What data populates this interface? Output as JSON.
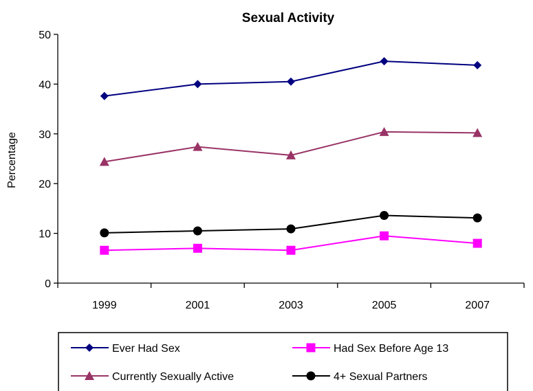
{
  "chart_data": {
    "type": "line",
    "title": "Sexual Activity",
    "xlabel": "",
    "ylabel": "Percentage",
    "categories": [
      "1999",
      "2001",
      "2003",
      "2005",
      "2007"
    ],
    "ylim": [
      0,
      50
    ],
    "yticks": [
      0,
      10,
      20,
      30,
      40,
      50
    ],
    "grid": false,
    "legend_position": "bottom",
    "series": [
      {
        "name": "Ever Had Sex",
        "values": [
          37.6,
          40.0,
          40.5,
          44.6,
          43.8
        ],
        "color": "#000080",
        "marker": "diamond"
      },
      {
        "name": "Had Sex Before Age 13",
        "values": [
          6.6,
          7.0,
          6.6,
          9.5,
          8.0
        ],
        "color": "#FF00FF",
        "marker": "square"
      },
      {
        "name": "Currently Sexually Active",
        "values": [
          24.4,
          27.4,
          25.7,
          30.4,
          30.2
        ],
        "color": "#993366",
        "marker": "triangle"
      },
      {
        "name": "4+ Sexual Partners",
        "values": [
          10.1,
          10.5,
          10.9,
          13.6,
          13.1
        ],
        "color": "#000000",
        "marker": "circle"
      }
    ]
  }
}
